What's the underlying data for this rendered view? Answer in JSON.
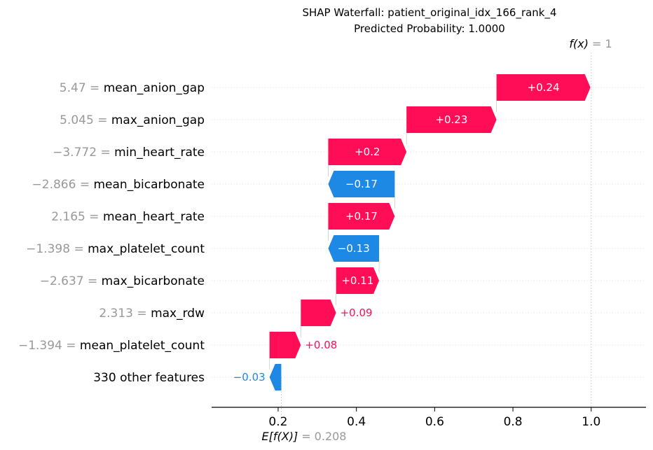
{
  "chart_data": {
    "type": "waterfall",
    "title_line1": "SHAP Waterfall: patient_original_idx_166_rank_4",
    "title_line2": "Predicted Probability: 1.0000",
    "base_value": 0.208,
    "output_value": 1.0,
    "base_label_expr": "E[f(X)]",
    "base_label_value": "= 0.208",
    "output_label_expr": "f(x)",
    "output_label_value": "= 1",
    "xlim": [
      0.03,
      1.14
    ],
    "x_ticks": [
      0.2,
      0.4,
      0.6,
      0.8,
      1.0
    ],
    "x_tick_labels": [
      "0.2",
      "0.4",
      "0.6",
      "0.8",
      "1.0"
    ],
    "colors": {
      "positive": "#ff0d57",
      "negative": "#1e88e5",
      "feature_value": "#999999"
    },
    "features": [
      {
        "value": "5.47",
        "name": "mean_anion_gap",
        "contribution": 0.24,
        "label": "+0.24"
      },
      {
        "value": "5.045",
        "name": "max_anion_gap",
        "contribution": 0.23,
        "label": "+0.23"
      },
      {
        "value": "−3.772",
        "name": "min_heart_rate",
        "contribution": 0.2,
        "label": "+0.2"
      },
      {
        "value": "−2.866",
        "name": "mean_bicarbonate",
        "contribution": -0.17,
        "label": "−0.17"
      },
      {
        "value": "2.165",
        "name": "mean_heart_rate",
        "contribution": 0.17,
        "label": "+0.17"
      },
      {
        "value": "−1.398",
        "name": "max_platelet_count",
        "contribution": -0.13,
        "label": "−0.13"
      },
      {
        "value": "−2.637",
        "name": "max_bicarbonate",
        "contribution": 0.11,
        "label": "+0.11"
      },
      {
        "value": "2.313",
        "name": "max_rdw",
        "contribution": 0.09,
        "label": "+0.09"
      },
      {
        "value": "−1.394",
        "name": "mean_platelet_count",
        "contribution": 0.08,
        "label": "+0.08"
      },
      {
        "value": "",
        "name": "330 other features",
        "contribution": -0.03,
        "label": "−0.03"
      }
    ]
  }
}
